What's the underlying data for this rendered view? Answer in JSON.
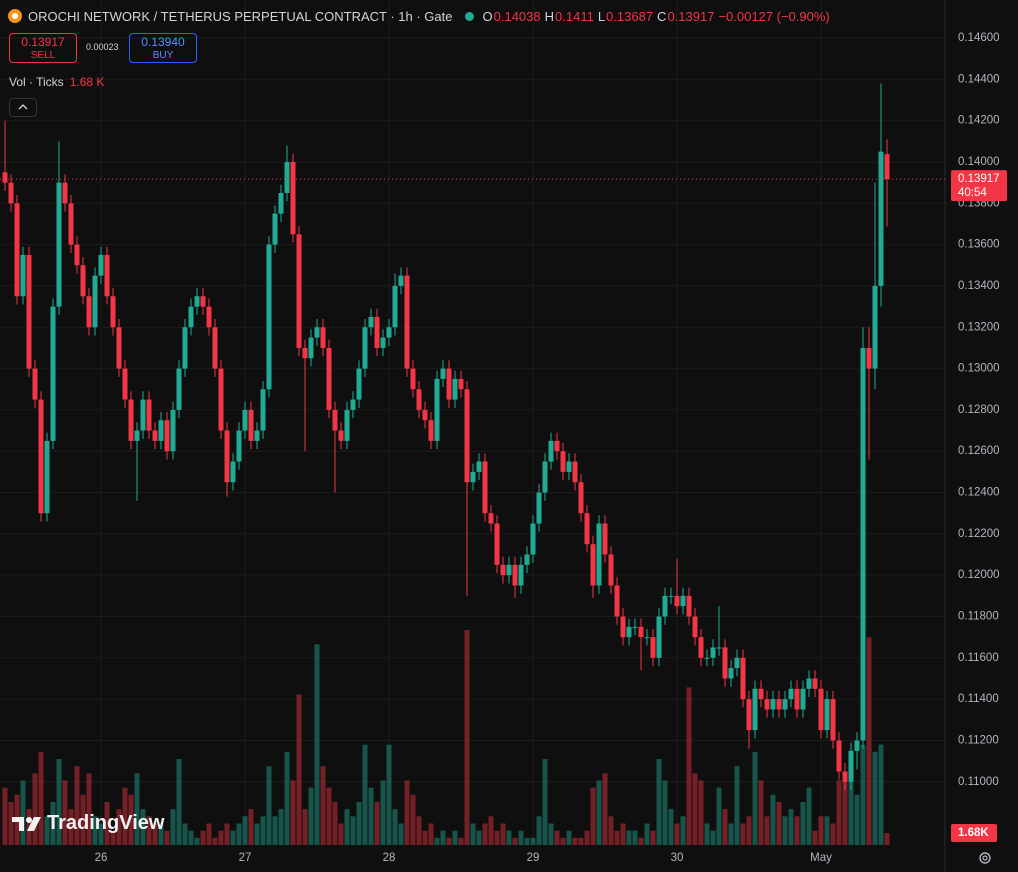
{
  "chart_data": {
    "type": "candlestick",
    "title": "OROCHI NETWORK / TETHERUS PERPETUAL CONTRACT · 1h · Gate",
    "ohlc_labels": [
      "O",
      "H",
      "L",
      "C"
    ],
    "change": "−0.00127 (−0.90%)",
    "sell_label": "SELL",
    "buy_label": "BUY",
    "buy_price": "0.13940",
    "spread": "0.00023",
    "volume_title": "Vol · Ticks",
    "volume_last": "1.68 K",
    "volume_axis_label": "1.68K",
    "countdown": "40:54",
    "watermark": "TradingView",
    "up_color": "#22ab94",
    "down_color": "#f23645",
    "grid": true,
    "ylim": [
      0.10694,
      0.14784
    ],
    "yticks": [
      {
        "value": 0.146,
        "label": "0.14600"
      },
      {
        "value": 0.144,
        "label": "0.14400"
      },
      {
        "value": 0.142,
        "label": "0.14200"
      },
      {
        "value": 0.14,
        "label": "0.14000"
      },
      {
        "value": 0.138,
        "label": "0.13800"
      },
      {
        "value": 0.136,
        "label": "0.13600"
      },
      {
        "value": 0.134,
        "label": "0.13400"
      },
      {
        "value": 0.132,
        "label": "0.13200"
      },
      {
        "value": 0.13,
        "label": "0.13000"
      },
      {
        "value": 0.128,
        "label": "0.12800"
      },
      {
        "value": 0.126,
        "label": "0.12600"
      },
      {
        "value": 0.124,
        "label": "0.12400"
      },
      {
        "value": 0.122,
        "label": "0.12200"
      },
      {
        "value": 0.12,
        "label": "0.12000"
      },
      {
        "value": 0.118,
        "label": "0.11800"
      },
      {
        "value": 0.116,
        "label": "0.11600"
      },
      {
        "value": 0.114,
        "label": "0.11400"
      },
      {
        "value": 0.112,
        "label": "0.11200"
      },
      {
        "value": 0.11,
        "label": "0.11000"
      }
    ],
    "xticks": [
      {
        "value": 16,
        "label": "26"
      },
      {
        "value": 40,
        "label": "27"
      },
      {
        "value": 64,
        "label": "28"
      },
      {
        "value": 88,
        "label": "29"
      },
      {
        "value": 112,
        "label": "30"
      },
      {
        "value": 136,
        "label": "May"
      }
    ],
    "open": [
      0.1395,
      0.139,
      0.138,
      0.1335,
      0.1355,
      0.13,
      0.1285,
      0.123,
      0.1265,
      0.133,
      0.139,
      0.138,
      0.136,
      0.135,
      0.1335,
      0.132,
      0.1345,
      0.1355,
      0.1335,
      0.132,
      0.13,
      0.1285,
      0.1265,
      0.127,
      0.1285,
      0.127,
      0.1265,
      0.1275,
      0.126,
      0.128,
      0.13,
      0.132,
      0.133,
      0.1335,
      0.133,
      0.132,
      0.13,
      0.127,
      0.1245,
      0.1255,
      0.127,
      0.128,
      0.1265,
      0.127,
      0.129,
      0.136,
      0.1375,
      0.1385,
      0.14,
      0.1365,
      0.131,
      0.1305,
      0.1315,
      0.132,
      0.131,
      0.128,
      0.127,
      0.1265,
      0.128,
      0.1285,
      0.13,
      0.132,
      0.1325,
      0.131,
      0.1315,
      0.132,
      0.134,
      0.1345,
      0.13,
      0.129,
      0.128,
      0.1275,
      0.1265,
      0.1295,
      0.13,
      0.1285,
      0.1295,
      0.129,
      0.1245,
      0.125,
      0.1255,
      0.123,
      0.1225,
      0.1205,
      0.12,
      0.1205,
      0.1195,
      0.1205,
      0.121,
      0.1225,
      0.124,
      0.1255,
      0.1265,
      0.126,
      0.125,
      0.1255,
      0.1245,
      0.123,
      0.1215,
      0.1195,
      0.1225,
      0.121,
      0.1195,
      0.118,
      0.117,
      0.1175,
      0.1175,
      0.117,
      0.117,
      0.116,
      0.118,
      0.119,
      0.119,
      0.1185,
      0.119,
      0.118,
      0.117,
      0.116,
      0.116,
      0.1165,
      0.1165,
      0.115,
      0.1155,
      0.116,
      0.114,
      0.1125,
      0.1145,
      0.114,
      0.1135,
      0.114,
      0.1135,
      0.114,
      0.1145,
      0.1135,
      0.1145,
      0.115,
      0.1145,
      0.1125,
      0.114,
      0.112,
      0.1105,
      0.11,
      0.1115,
      0.112,
      0.131,
      0.13,
      0.134,
      0.14038
    ],
    "high": [
      0.142,
      0.1394,
      0.1384,
      0.1359,
      0.1359,
      0.1304,
      0.1289,
      0.1269,
      0.1334,
      0.141,
      0.1394,
      0.1384,
      0.1364,
      0.1354,
      0.1339,
      0.1349,
      0.1359,
      0.1359,
      0.1339,
      0.1324,
      0.1304,
      0.1289,
      0.1274,
      0.1289,
      0.1289,
      0.1274,
      0.1279,
      0.1279,
      0.1284,
      0.1304,
      0.1324,
      0.1334,
      0.1339,
      0.1339,
      0.1334,
      0.1324,
      0.1304,
      0.1274,
      0.1259,
      0.1274,
      0.1284,
      0.1284,
      0.1274,
      0.1294,
      0.1364,
      0.1379,
      0.1389,
      0.1408,
      0.1404,
      0.1369,
      0.1314,
      0.1319,
      0.1324,
      0.1324,
      0.1314,
      0.1284,
      0.1274,
      0.1284,
      0.1289,
      0.1304,
      0.1324,
      0.1329,
      0.1329,
      0.1319,
      0.1324,
      0.1346,
      0.1349,
      0.1349,
      0.1304,
      0.1294,
      0.1284,
      0.1279,
      0.1299,
      0.1304,
      0.1304,
      0.1299,
      0.1299,
      0.1294,
      0.1254,
      0.1259,
      0.1259,
      0.1234,
      0.1229,
      0.1209,
      0.1209,
      0.1209,
      0.1209,
      0.1214,
      0.1229,
      0.1244,
      0.1259,
      0.1269,
      0.1269,
      0.1264,
      0.1259,
      0.1259,
      0.1249,
      0.1234,
      0.1219,
      0.1229,
      0.1229,
      0.1214,
      0.1199,
      0.1184,
      0.1179,
      0.1179,
      0.1179,
      0.1174,
      0.1174,
      0.1184,
      0.1194,
      0.1194,
      0.1208,
      0.1194,
      0.1194,
      0.1184,
      0.1174,
      0.1164,
      0.1169,
      0.1185,
      0.1169,
      0.1159,
      0.1164,
      0.1164,
      0.1144,
      0.1149,
      0.1149,
      0.1144,
      0.1144,
      0.1144,
      0.1144,
      0.1149,
      0.1149,
      0.1149,
      0.1154,
      0.1154,
      0.1149,
      0.1144,
      0.1144,
      0.1124,
      0.1109,
      0.1119,
      0.1124,
      0.132,
      0.132,
      0.139,
      0.1438,
      0.1411
    ],
    "low": [
      0.1386,
      0.1376,
      0.1331,
      0.1331,
      0.1296,
      0.1281,
      0.1226,
      0.1226,
      0.1261,
      0.1326,
      0.1376,
      0.1356,
      0.1346,
      0.1331,
      0.1316,
      0.1316,
      0.1341,
      0.1331,
      0.1316,
      0.1296,
      0.1281,
      0.1261,
      0.1236,
      0.1266,
      0.1266,
      0.1261,
      0.1261,
      0.1256,
      0.1256,
      0.1276,
      0.1296,
      0.1316,
      0.1326,
      0.1326,
      0.1316,
      0.1296,
      0.1266,
      0.1238,
      0.1241,
      0.1251,
      0.1266,
      0.1261,
      0.1261,
      0.1266,
      0.1286,
      0.1356,
      0.1371,
      0.1381,
      0.1361,
      0.1306,
      0.126,
      0.1301,
      0.1311,
      0.1306,
      0.1276,
      0.124,
      0.1261,
      0.1261,
      0.1276,
      0.1281,
      0.1296,
      0.1316,
      0.1306,
      0.1306,
      0.1311,
      0.1316,
      0.1336,
      0.1296,
      0.1286,
      0.1276,
      0.1271,
      0.1261,
      0.1261,
      0.1291,
      0.1281,
      0.1281,
      0.1286,
      0.119,
      0.1241,
      0.1246,
      0.1226,
      0.1221,
      0.1201,
      0.1196,
      0.1196,
      0.1189,
      0.1191,
      0.1201,
      0.1206,
      0.1221,
      0.1236,
      0.1251,
      0.1256,
      0.1246,
      0.1246,
      0.1241,
      0.1226,
      0.1211,
      0.1189,
      0.1191,
      0.1206,
      0.1191,
      0.1176,
      0.1166,
      0.1166,
      0.1171,
      0.1154,
      0.1166,
      0.1156,
      0.1156,
      0.1176,
      0.1186,
      0.1181,
      0.1181,
      0.1176,
      0.1166,
      0.1156,
      0.1156,
      0.1156,
      0.1161,
      0.1146,
      0.1146,
      0.1151,
      0.1136,
      0.1116,
      0.1121,
      0.1136,
      0.1131,
      0.1131,
      0.1131,
      0.1131,
      0.1136,
      0.1131,
      0.1131,
      0.1141,
      0.1141,
      0.1121,
      0.1121,
      0.1116,
      0.1101,
      0.1096,
      0.1096,
      0.1106,
      0.1116,
      0.1256,
      0.129,
      0.133,
      0.13687
    ],
    "close": [
      0.139,
      0.138,
      0.1335,
      0.1355,
      0.13,
      0.1285,
      0.123,
      0.1265,
      0.133,
      0.139,
      0.138,
      0.136,
      0.135,
      0.1335,
      0.132,
      0.1345,
      0.1355,
      0.1335,
      0.132,
      0.13,
      0.1285,
      0.1265,
      0.127,
      0.1285,
      0.127,
      0.1265,
      0.1275,
      0.126,
      0.128,
      0.13,
      0.132,
      0.133,
      0.1335,
      0.133,
      0.132,
      0.13,
      0.127,
      0.1245,
      0.1255,
      0.127,
      0.128,
      0.1265,
      0.127,
      0.129,
      0.136,
      0.1375,
      0.1385,
      0.14,
      0.1365,
      0.131,
      0.1305,
      0.1315,
      0.132,
      0.131,
      0.128,
      0.127,
      0.1265,
      0.128,
      0.1285,
      0.13,
      0.132,
      0.1325,
      0.131,
      0.1315,
      0.132,
      0.134,
      0.1345,
      0.13,
      0.129,
      0.128,
      0.1275,
      0.1265,
      0.1295,
      0.13,
      0.1285,
      0.1295,
      0.129,
      0.1245,
      0.125,
      0.1255,
      0.123,
      0.1225,
      0.1205,
      0.12,
      0.1205,
      0.1195,
      0.1205,
      0.121,
      0.1225,
      0.124,
      0.1255,
      0.1265,
      0.126,
      0.125,
      0.1255,
      0.1245,
      0.123,
      0.1215,
      0.1195,
      0.1225,
      0.121,
      0.1195,
      0.118,
      0.117,
      0.1175,
      0.1175,
      0.117,
      0.117,
      0.116,
      0.118,
      0.119,
      0.119,
      0.1185,
      0.119,
      0.118,
      0.117,
      0.116,
      0.116,
      0.1165,
      0.1165,
      0.115,
      0.1155,
      0.116,
      0.114,
      0.1125,
      0.1145,
      0.114,
      0.1135,
      0.114,
      0.1135,
      0.114,
      0.1145,
      0.1135,
      0.1145,
      0.115,
      0.1145,
      0.1125,
      0.114,
      0.112,
      0.1105,
      0.11,
      0.1115,
      0.112,
      0.131,
      0.13,
      0.134,
      0.1405,
      0.13917
    ],
    "volume": [
      8,
      6,
      7,
      9,
      5,
      10,
      13,
      4,
      6,
      12,
      9,
      5,
      11,
      7,
      10,
      4,
      3,
      6,
      2,
      5,
      8,
      7,
      10,
      5,
      4,
      3,
      3,
      2,
      5,
      12,
      3,
      2,
      1,
      2,
      3,
      1,
      2,
      3,
      2,
      3,
      4,
      5,
      3,
      4,
      11,
      4,
      5,
      13,
      9,
      21,
      5,
      8,
      28,
      11,
      8,
      6,
      3,
      5,
      4,
      6,
      14,
      8,
      6,
      9,
      14,
      5,
      3,
      9,
      7,
      4,
      2,
      3,
      1,
      2,
      1,
      2,
      1,
      30,
      3,
      2,
      3,
      4,
      2,
      3,
      2,
      1,
      2,
      1,
      1,
      4,
      12,
      3,
      2,
      1,
      2,
      1,
      1,
      2,
      8,
      9,
      10,
      4,
      2,
      3,
      2,
      2,
      1,
      3,
      2,
      12,
      9,
      5,
      3,
      4,
      22,
      10,
      9,
      3,
      2,
      8,
      5,
      3,
      11,
      3,
      4,
      13,
      9,
      4,
      7,
      6,
      4,
      5,
      4,
      6,
      8,
      2,
      4,
      4,
      3,
      9,
      10,
      13,
      7,
      14,
      29,
      13,
      14,
      1.68
    ]
  }
}
